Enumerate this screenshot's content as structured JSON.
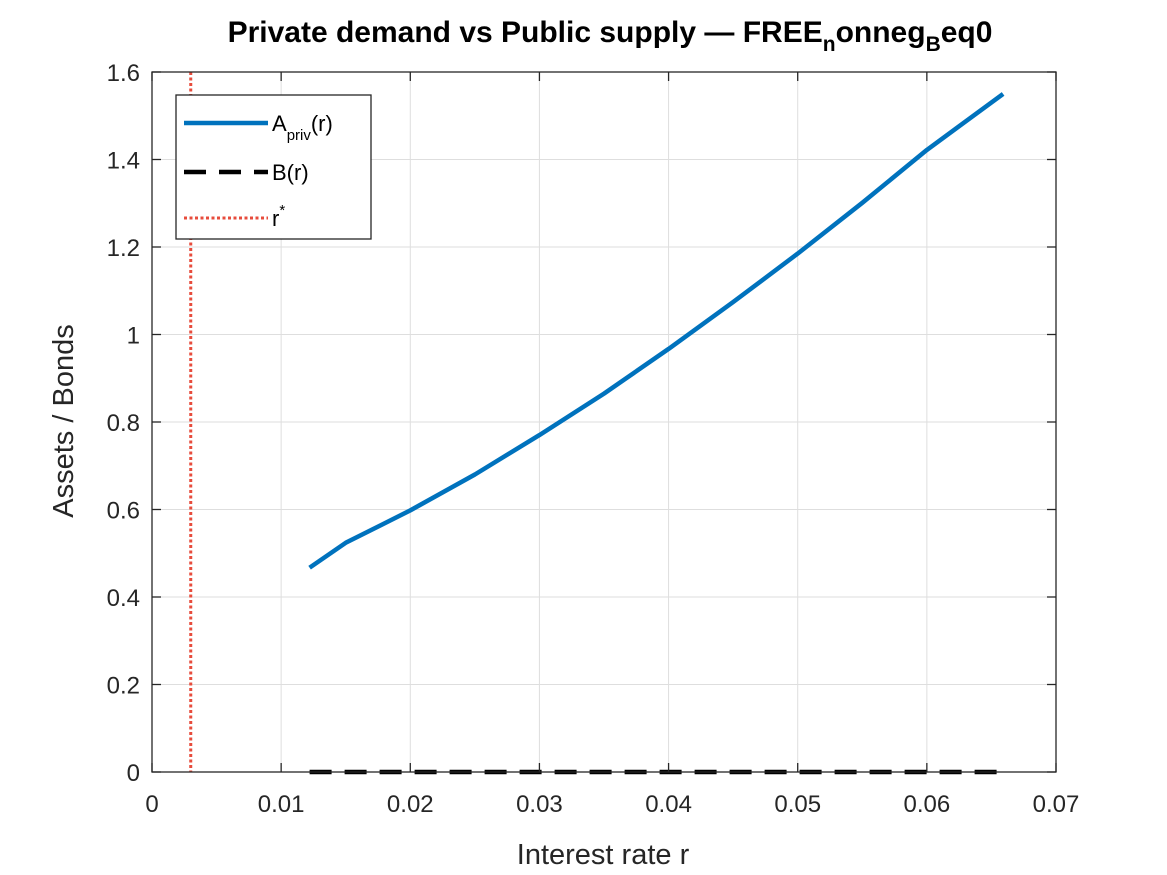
{
  "chart_data": {
    "type": "line",
    "title": {
      "parts": [
        {
          "text": "Private demand vs Public supply — FREE",
          "sub": false
        },
        {
          "text": "n",
          "sub": true
        },
        {
          "text": "onneg",
          "sub": false
        },
        {
          "text": "B",
          "sub": true
        },
        {
          "text": "eq0",
          "sub": false
        }
      ]
    },
    "xlabel": "Interest rate r",
    "ylabel": "Assets / Bonds",
    "xlim": [
      0,
      0.07
    ],
    "ylim": [
      0,
      1.6
    ],
    "xticks": [
      0,
      0.01,
      0.02,
      0.03,
      0.04,
      0.05,
      0.06,
      0.07
    ],
    "xtick_labels": [
      "0",
      "0.01",
      "0.02",
      "0.03",
      "0.04",
      "0.05",
      "0.06",
      "0.07"
    ],
    "yticks": [
      0,
      0.2,
      0.4,
      0.6,
      0.8,
      1,
      1.2,
      1.4,
      1.6
    ],
    "ytick_labels": [
      "0",
      "0.2",
      "0.4",
      "0.6",
      "0.8",
      "1",
      "1.2",
      "1.4",
      "1.6"
    ],
    "grid": true,
    "legend_position": "top-left",
    "series": [
      {
        "name": "A_priv(r)",
        "legend_label": {
          "base": "A",
          "sub": "priv",
          "rest": "(r)"
        },
        "color": "#0072BD",
        "style": "solid",
        "x": [
          0.0122,
          0.015,
          0.02,
          0.025,
          0.03,
          0.035,
          0.04,
          0.045,
          0.05,
          0.055,
          0.06,
          0.0659
        ],
        "y": [
          0.467,
          0.524,
          0.598,
          0.68,
          0.77,
          0.865,
          0.967,
          1.074,
          1.185,
          1.301,
          1.422,
          1.55
        ]
      },
      {
        "name": "B(r)",
        "legend_label": {
          "base": "B(r)",
          "sub": "",
          "rest": ""
        },
        "color": "#000000",
        "style": "dashed",
        "x": [
          0.0122,
          0.0659
        ],
        "y": [
          0,
          0
        ]
      },
      {
        "name": "r*",
        "legend_label": {
          "base": "r",
          "sup": "*",
          "rest": ""
        },
        "color": "#E74C3C",
        "style": "dotted",
        "vertical_x": 0.003
      }
    ]
  }
}
